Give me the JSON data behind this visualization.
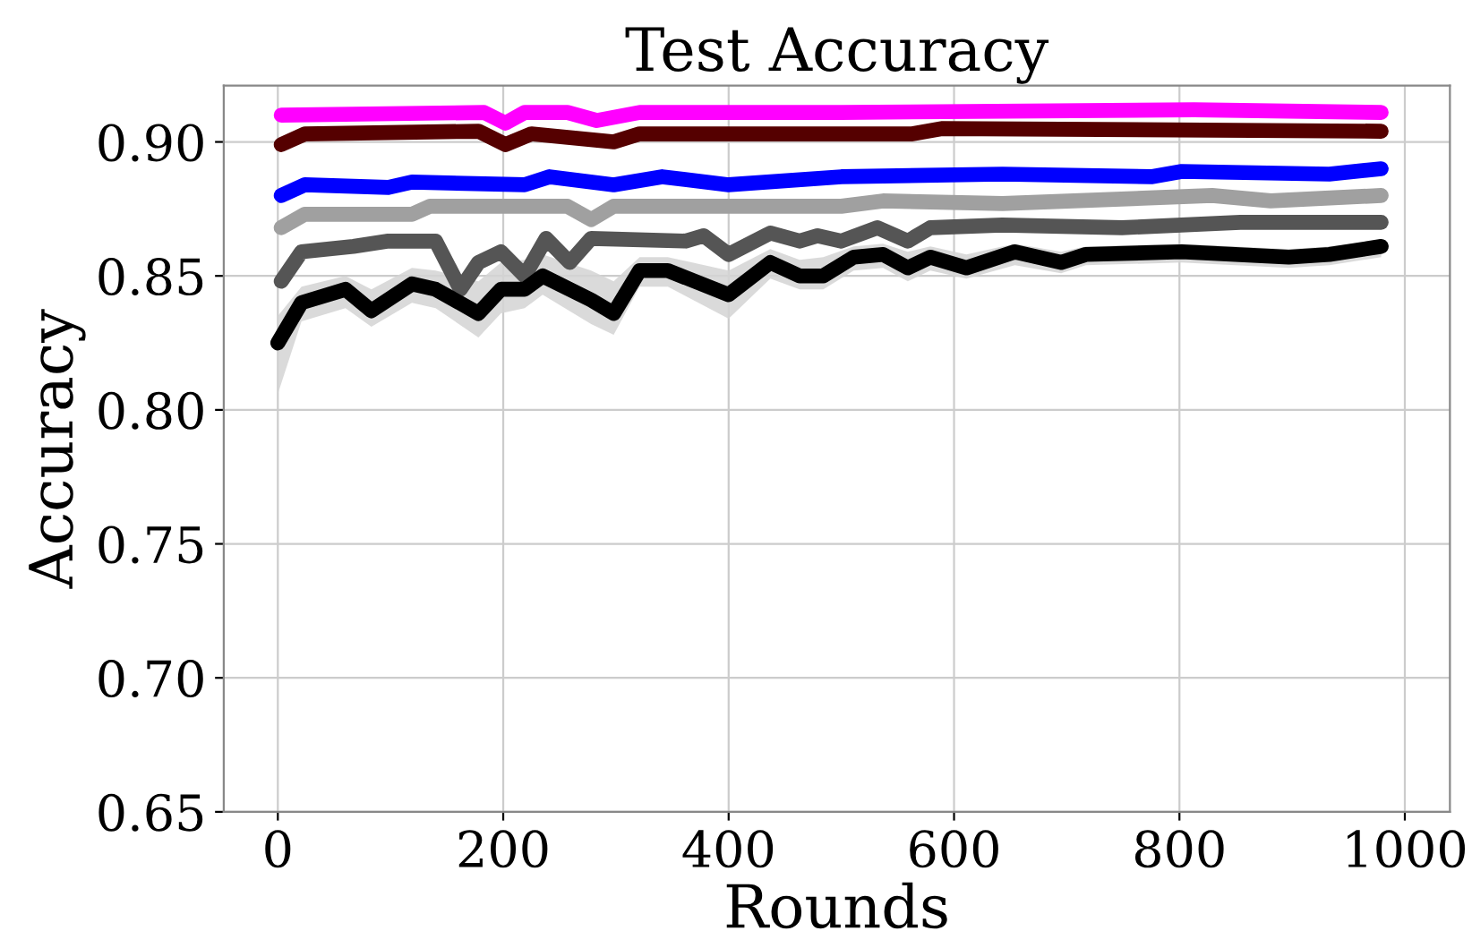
{
  "chart_data": {
    "type": "line",
    "title": "Test Accuracy",
    "xlabel": "Rounds",
    "ylabel": "Accuracy",
    "xlim": [
      -48,
      1040
    ],
    "ylim": [
      0.65,
      0.921
    ],
    "xticks": [
      0,
      200,
      400,
      600,
      800,
      1000
    ],
    "yticks": [
      {
        "value": 0.65,
        "label": "0.65"
      },
      {
        "value": 0.7,
        "label": "0.70"
      },
      {
        "value": 0.75,
        "label": "0.75"
      },
      {
        "value": 0.8,
        "label": "0.80"
      },
      {
        "value": 0.85,
        "label": "0.85"
      },
      {
        "value": 0.9,
        "label": "0.90"
      }
    ],
    "grid": true,
    "line_style": "solid",
    "series": [
      {
        "color": "#ff00ff",
        "x": [
          3,
          183,
          202,
          219,
          257,
          283,
          321,
          500,
          813,
          979
        ],
        "values": [
          0.91,
          0.911,
          0.907,
          0.911,
          0.911,
          0.908,
          0.911,
          0.911,
          0.912,
          0.911
        ]
      },
      {
        "color": "#550000",
        "x": [
          3,
          24,
          178,
          202,
          225,
          298,
          321,
          500,
          563,
          590,
          979
        ],
        "values": [
          0.899,
          0.903,
          0.904,
          0.899,
          0.903,
          0.9,
          0.903,
          0.903,
          0.903,
          0.905,
          0.904
        ]
      },
      {
        "color": "#0000ff",
        "x": [
          3,
          24,
          98,
          119,
          219,
          241,
          298,
          341,
          400,
          500,
          643,
          775,
          802,
          933,
          979
        ],
        "values": [
          0.88,
          0.884,
          0.883,
          0.885,
          0.884,
          0.887,
          0.884,
          0.887,
          0.884,
          0.887,
          0.888,
          0.887,
          0.889,
          0.888,
          0.89
        ]
      },
      {
        "color": "#a0a0a0",
        "x": [
          3,
          24,
          119,
          135,
          257,
          278,
          298,
          500,
          537,
          643,
          829,
          881,
          979
        ],
        "values": [
          0.868,
          0.873,
          0.873,
          0.876,
          0.876,
          0.871,
          0.876,
          0.876,
          0.878,
          0.877,
          0.88,
          0.878,
          0.88
        ]
      },
      {
        "color": "#555555",
        "x": [
          3,
          21,
          67,
          98,
          140,
          162,
          178,
          198,
          219,
          238,
          259,
          278,
          362,
          378,
          400,
          437,
          463,
          479,
          500,
          532,
          559,
          579,
          643,
          749,
          854,
          979
        ],
        "values": [
          0.848,
          0.859,
          0.861,
          0.863,
          0.863,
          0.845,
          0.855,
          0.859,
          0.85,
          0.864,
          0.855,
          0.864,
          0.863,
          0.865,
          0.858,
          0.866,
          0.863,
          0.865,
          0.863,
          0.868,
          0.863,
          0.868,
          0.869,
          0.868,
          0.87,
          0.87
        ]
      },
      {
        "color": "#000000",
        "x": [
          0,
          21,
          60,
          83,
          119,
          140,
          178,
          198,
          219,
          235,
          278,
          298,
          321,
          346,
          400,
          437,
          463,
          484,
          511,
          537,
          559,
          579,
          611,
          654,
          695,
          717,
          802,
          897,
          933,
          979
        ],
        "values": [
          0.825,
          0.84,
          0.845,
          0.837,
          0.847,
          0.845,
          0.836,
          0.845,
          0.845,
          0.85,
          0.841,
          0.836,
          0.852,
          0.852,
          0.843,
          0.855,
          0.85,
          0.85,
          0.857,
          0.858,
          0.853,
          0.857,
          0.853,
          0.859,
          0.855,
          0.858,
          0.859,
          0.857,
          0.858,
          0.861
        ],
        "lower": [
          0.806,
          0.833,
          0.838,
          0.831,
          0.84,
          0.838,
          0.827,
          0.836,
          0.838,
          0.843,
          0.832,
          0.828,
          0.846,
          0.846,
          0.834,
          0.849,
          0.845,
          0.845,
          0.852,
          0.853,
          0.848,
          0.852,
          0.849,
          0.854,
          0.851,
          0.854,
          0.855,
          0.853,
          0.854,
          0.857
        ],
        "upper": [
          0.835,
          0.846,
          0.85,
          0.845,
          0.853,
          0.852,
          0.848,
          0.855,
          0.856,
          0.858,
          0.852,
          0.848,
          0.857,
          0.857,
          0.852,
          0.86,
          0.856,
          0.857,
          0.861,
          0.862,
          0.859,
          0.861,
          0.858,
          0.862,
          0.859,
          0.861,
          0.862,
          0.86,
          0.861,
          0.863
        ]
      }
    ]
  }
}
